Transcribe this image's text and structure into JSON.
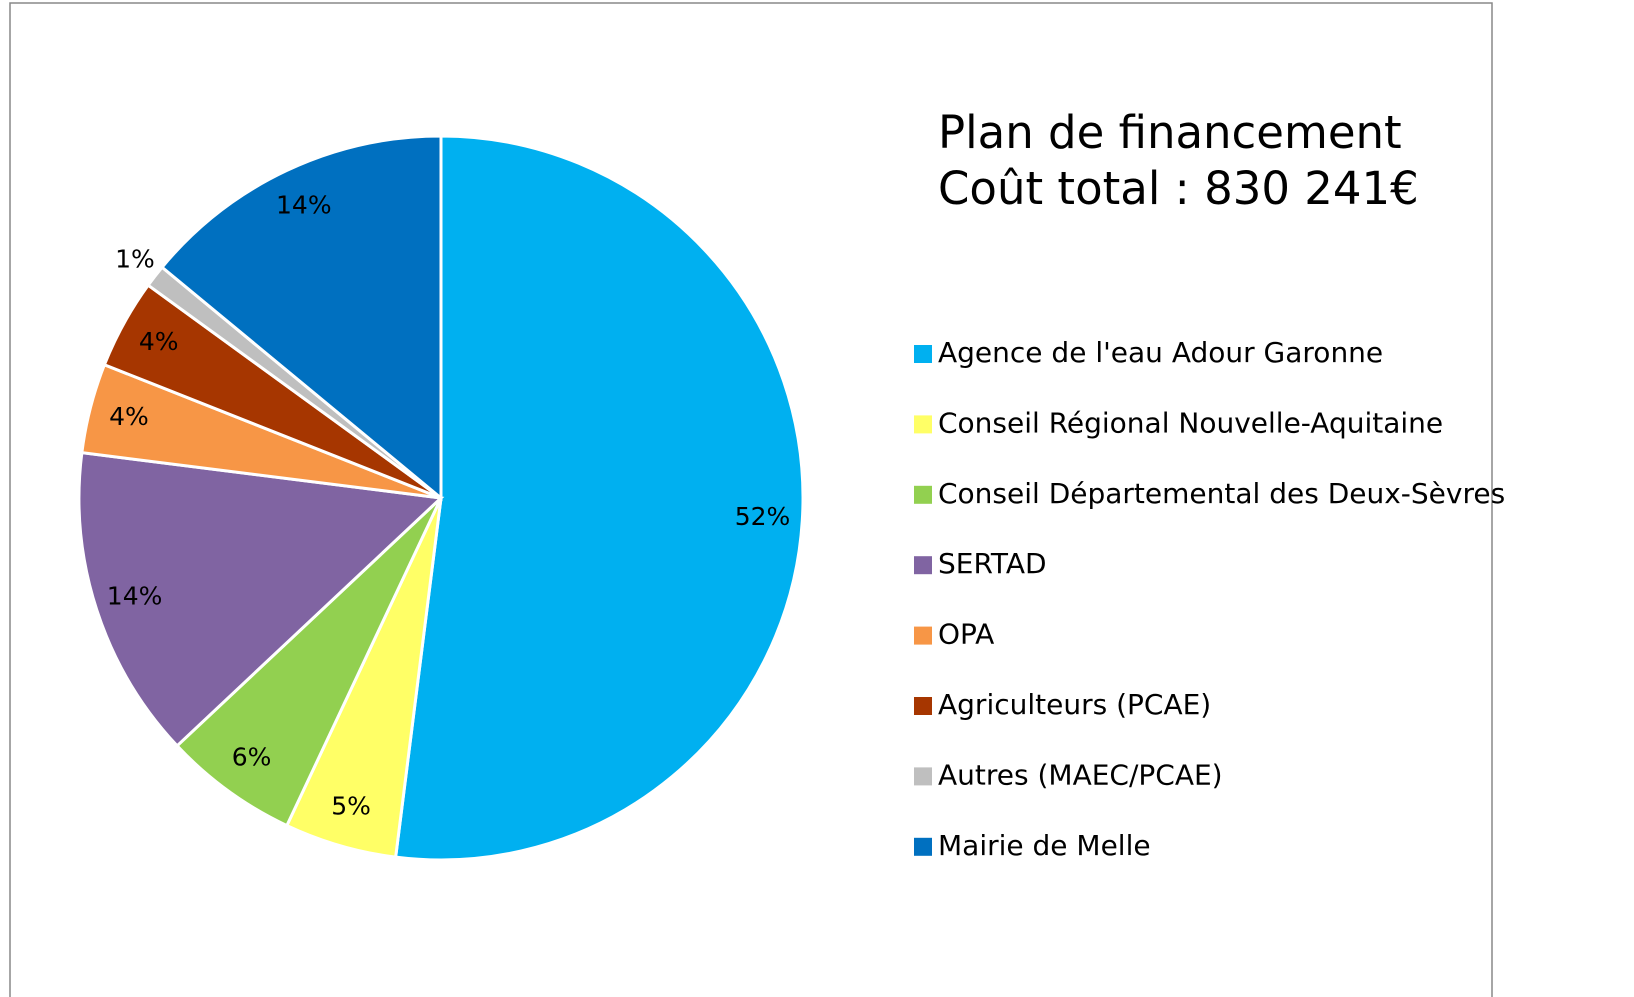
{
  "chart_data": {
    "type": "pie",
    "title": "Plan de financement",
    "subtitle": "Coût total : 830 241€",
    "categories": [
      "Agence de l'eau Adour Garonne",
      "Conseil Régional Nouvelle-Aquitaine",
      "Conseil Départemental des Deux-Sèvres",
      "SERTAD",
      "OPA",
      "Agriculteurs (PCAE)",
      "Autres (MAEC/PCAE)",
      "Mairie de Melle"
    ],
    "values": [
      52,
      5,
      6,
      14,
      4,
      4,
      1,
      14
    ],
    "value_labels": [
      "52%",
      "5%",
      "6%",
      "14%",
      "4%",
      "4%",
      "1%",
      "14%"
    ],
    "colors": [
      "#00b0f0",
      "#ffff66",
      "#92d050",
      "#8064a2",
      "#f79646",
      "#a63600",
      "#bfbfbf",
      "#0070c0"
    ],
    "legend": "right"
  }
}
